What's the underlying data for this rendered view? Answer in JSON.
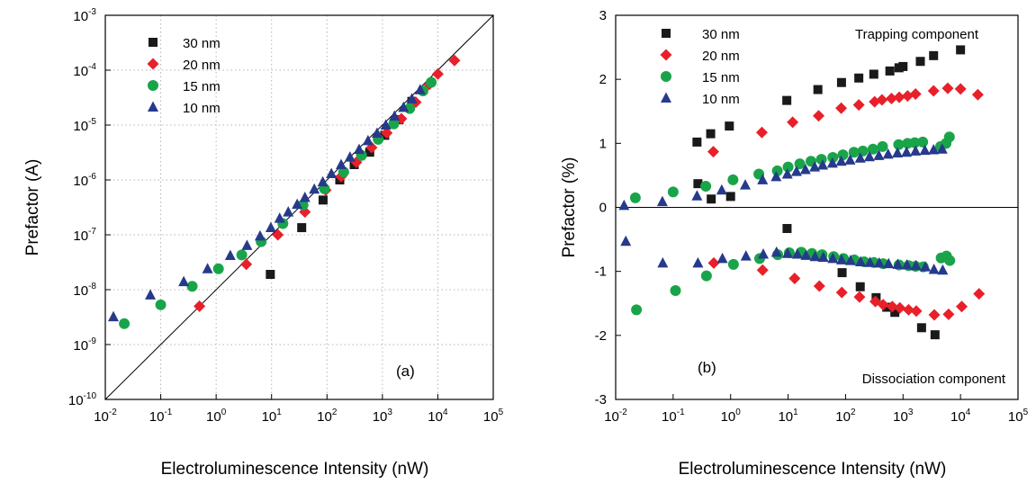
{
  "chart_data": [
    {
      "type": "scatter",
      "panel_label": "(a)",
      "xlabel": "Electroluminescence Intensity (nW)",
      "ylabel": "Prefactor (A)",
      "xscale": "log",
      "yscale": "log",
      "xlim": [
        0.01,
        100000
      ],
      "ylim": [
        1e-10,
        0.001
      ],
      "x_ticks": [
        {
          "base": "10",
          "exp": "-2"
        },
        {
          "base": "10",
          "exp": "-1"
        },
        {
          "base": "10",
          "exp": "0"
        },
        {
          "base": "10",
          "exp": "1"
        },
        {
          "base": "10",
          "exp": "2"
        },
        {
          "base": "10",
          "exp": "3"
        },
        {
          "base": "10",
          "exp": "4"
        },
        {
          "base": "10",
          "exp": "5"
        }
      ],
      "y_ticks": [
        {
          "base": "10",
          "exp": "-10"
        },
        {
          "base": "10",
          "exp": "-9"
        },
        {
          "base": "10",
          "exp": "-8"
        },
        {
          "base": "10",
          "exp": "-7"
        },
        {
          "base": "10",
          "exp": "-6"
        },
        {
          "base": "10",
          "exp": "-5"
        },
        {
          "base": "10",
          "exp": "-4"
        },
        {
          "base": "10",
          "exp": "-3"
        }
      ],
      "grid": true,
      "legend_position": "top-left",
      "reference_line": {
        "x": [
          0.01,
          100000
        ],
        "y": [
          1e-10,
          0.001
        ]
      },
      "series": [
        {
          "name": "30 nm",
          "marker": "square",
          "color": "#1a1a1a",
          "x": [
            9.5,
            35,
            85,
            170,
            310,
            590,
            1100,
            2000,
            3400
          ],
          "y": [
            1.9e-08,
            1.35e-07,
            4.3e-07,
            1e-06,
            1.9e-06,
            3.2e-06,
            6.5e-06,
            1.25e-05,
            2.7e-05
          ]
        },
        {
          "name": "20 nm",
          "marker": "diamond",
          "color": "#e8202a",
          "x": [
            0.5,
            3.5,
            13,
            40,
            95,
            180,
            340,
            640,
            1200,
            2200,
            4000,
            7000,
            10000,
            20000
          ],
          "y": [
            5e-09,
            2.9e-08,
            1e-07,
            2.6e-07,
            6.5e-07,
            1.15e-06,
            2.1e-06,
            3.9e-06,
            7.2e-06,
            1.3e-05,
            2.6e-05,
            5.5e-05,
            8.5e-05,
            0.00015
          ]
        },
        {
          "name": "15 nm",
          "marker": "circle",
          "color": "#1aa44a",
          "x": [
            0.022,
            0.1,
            0.37,
            1.1,
            2.9,
            6.5,
            16,
            37,
            90,
            200,
            420,
            840,
            1600,
            3100,
            5400,
            7600
          ],
          "y": [
            2.4e-09,
            5.3e-09,
            1.15e-08,
            2.4e-08,
            4.3e-08,
            7.5e-08,
            1.6e-07,
            3.5e-07,
            6.9e-07,
            1.4e-06,
            2.8e-06,
            5.5e-06,
            1.05e-05,
            2e-05,
            4.2e-05,
            6e-05
          ]
        },
        {
          "name": "10 nm",
          "marker": "triangle",
          "color": "#263a8c",
          "x": [
            0.014,
            0.065,
            0.26,
            0.7,
            1.8,
            3.6,
            6.2,
            9.7,
            14,
            20,
            29,
            40,
            59,
            84,
            120,
            180,
            260,
            380,
            550,
            800,
            1150,
            1650,
            2400,
            3400,
            4800
          ],
          "y": [
            3.2e-09,
            8e-09,
            1.4e-08,
            2.4e-08,
            4.2e-08,
            6.4e-08,
            9.5e-08,
            1.35e-07,
            2e-07,
            2.6e-07,
            3.6e-07,
            4.8e-07,
            6.8e-07,
            9.2e-07,
            1.3e-06,
            1.9e-06,
            2.6e-06,
            3.6e-06,
            5.2e-06,
            7.1e-06,
            1e-05,
            1.45e-05,
            2.1e-05,
            3e-05,
            4.4e-05
          ]
        }
      ]
    },
    {
      "type": "scatter",
      "panel_label": "(b)",
      "xlabel": "Electroluminescence Intensity (nW)",
      "ylabel": "Prefactor (%)",
      "xscale": "log",
      "yscale": "linear",
      "xlim": [
        0.01,
        100000
      ],
      "ylim": [
        -3,
        3
      ],
      "x_ticks": [
        {
          "base": "10",
          "exp": "-2"
        },
        {
          "base": "10",
          "exp": "-1"
        },
        {
          "base": "10",
          "exp": "0"
        },
        {
          "base": "10",
          "exp": "1"
        },
        {
          "base": "10",
          "exp": "2"
        },
        {
          "base": "10",
          "exp": "3"
        },
        {
          "base": "10",
          "exp": "4"
        },
        {
          "base": "10",
          "exp": "5"
        }
      ],
      "y_ticks": [
        "-3",
        "-2",
        "-1",
        "0",
        "1",
        "2",
        "3"
      ],
      "grid": false,
      "zero_line": true,
      "legend_position": "top-left",
      "annotations": [
        "Trapping component",
        "Dissociation component"
      ],
      "series": [
        {
          "name": "30 nm",
          "marker": "square",
          "color": "#1a1a1a",
          "x": [
            0.26,
            0.27,
            0.45,
            0.46,
            0.95,
            1.0,
            9.5,
            9.6,
            33,
            85,
            87,
            170,
            180,
            310,
            340,
            520,
            590,
            720,
            850,
            1000,
            2000,
            2100,
            3400,
            3600,
            10000
          ],
          "y": [
            1.02,
            0.37,
            1.15,
            0.13,
            1.27,
            0.17,
            1.67,
            -0.33,
            1.84,
            1.95,
            -1.02,
            2.02,
            -1.24,
            2.08,
            -1.41,
            -1.56,
            2.13,
            -1.64,
            2.18,
            2.2,
            2.28,
            -1.88,
            2.37,
            -1.99,
            2.46
          ]
        },
        {
          "name": "20 nm",
          "marker": "diamond",
          "color": "#e8202a",
          "x": [
            0.5,
            0.51,
            3.5,
            3.6,
            12,
            13,
            34,
            35,
            84,
            86,
            170,
            175,
            320,
            330,
            430,
            450,
            630,
            650,
            860,
            880,
            1200,
            1250,
            1650,
            1700,
            3400,
            3500,
            6000,
            6200,
            10000,
            10500,
            20000,
            21000
          ],
          "y": [
            0.87,
            -0.87,
            1.17,
            -0.98,
            1.33,
            -1.11,
            1.43,
            -1.23,
            1.55,
            -1.33,
            1.6,
            -1.4,
            1.65,
            -1.47,
            1.68,
            -1.52,
            1.7,
            -1.55,
            1.72,
            -1.57,
            1.74,
            -1.6,
            1.77,
            -1.62,
            1.82,
            -1.68,
            1.86,
            -1.67,
            1.85,
            -1.55,
            1.76,
            -1.35
          ]
        },
        {
          "name": "15 nm",
          "marker": "circle",
          "color": "#1aa44a",
          "x": [
            0.022,
            0.023,
            0.1,
            0.11,
            0.37,
            0.38,
            1.1,
            1.12,
            3.1,
            3.2,
            6.5,
            6.6,
            10,
            10.5,
            16,
            17,
            25,
            26,
            38,
            39,
            60,
            62,
            90,
            92,
            140,
            142,
            200,
            210,
            300,
            310,
            440,
            450,
            840,
            850,
            1200,
            1250,
            1600,
            1650,
            2200,
            2250,
            4500,
            4600,
            5600,
            5700,
            6400,
            6500
          ],
          "y": [
            0.15,
            -1.6,
            0.24,
            -1.3,
            0.33,
            -1.07,
            0.43,
            -0.89,
            0.52,
            -0.8,
            0.57,
            -0.74,
            0.63,
            -0.71,
            0.68,
            -0.7,
            0.72,
            -0.72,
            0.75,
            -0.74,
            0.78,
            -0.77,
            0.82,
            -0.8,
            0.86,
            -0.82,
            0.88,
            -0.85,
            0.91,
            -0.86,
            0.95,
            -0.88,
            0.98,
            -0.9,
            1.0,
            -0.91,
            1.01,
            -0.92,
            1.02,
            -0.93,
            0.95,
            -0.79,
            1.0,
            -0.76,
            1.1,
            -0.83
          ]
        },
        {
          "name": "10 nm",
          "marker": "triangle",
          "color": "#263a8c",
          "x": [
            0.014,
            0.015,
            0.065,
            0.066,
            0.26,
            0.27,
            0.7,
            0.72,
            1.8,
            1.85,
            3.6,
            3.7,
            6.2,
            6.3,
            9.7,
            9.8,
            14,
            14.5,
            20,
            20.5,
            29,
            29.5,
            40,
            41,
            59,
            60,
            84,
            85,
            120,
            122,
            180,
            182,
            260,
            265,
            380,
            385,
            550,
            560,
            800,
            810,
            1150,
            1170,
            1650,
            1680,
            2400,
            2450,
            3400,
            3450,
            4800,
            4900
          ],
          "y": [
            0.03,
            -0.53,
            0.09,
            -0.87,
            0.18,
            -0.87,
            0.27,
            -0.8,
            0.35,
            -0.76,
            0.43,
            -0.73,
            0.48,
            -0.7,
            0.52,
            -0.72,
            0.56,
            -0.73,
            0.59,
            -0.75,
            0.63,
            -0.77,
            0.66,
            -0.78,
            0.69,
            -0.8,
            0.72,
            -0.82,
            0.74,
            -0.83,
            0.77,
            -0.85,
            0.79,
            -0.86,
            0.81,
            -0.87,
            0.83,
            -0.88,
            0.85,
            -0.89,
            0.86,
            -0.9,
            0.88,
            -0.91,
            0.89,
            -0.93,
            0.9,
            -0.97,
            0.91,
            -0.98
          ]
        }
      ]
    }
  ]
}
